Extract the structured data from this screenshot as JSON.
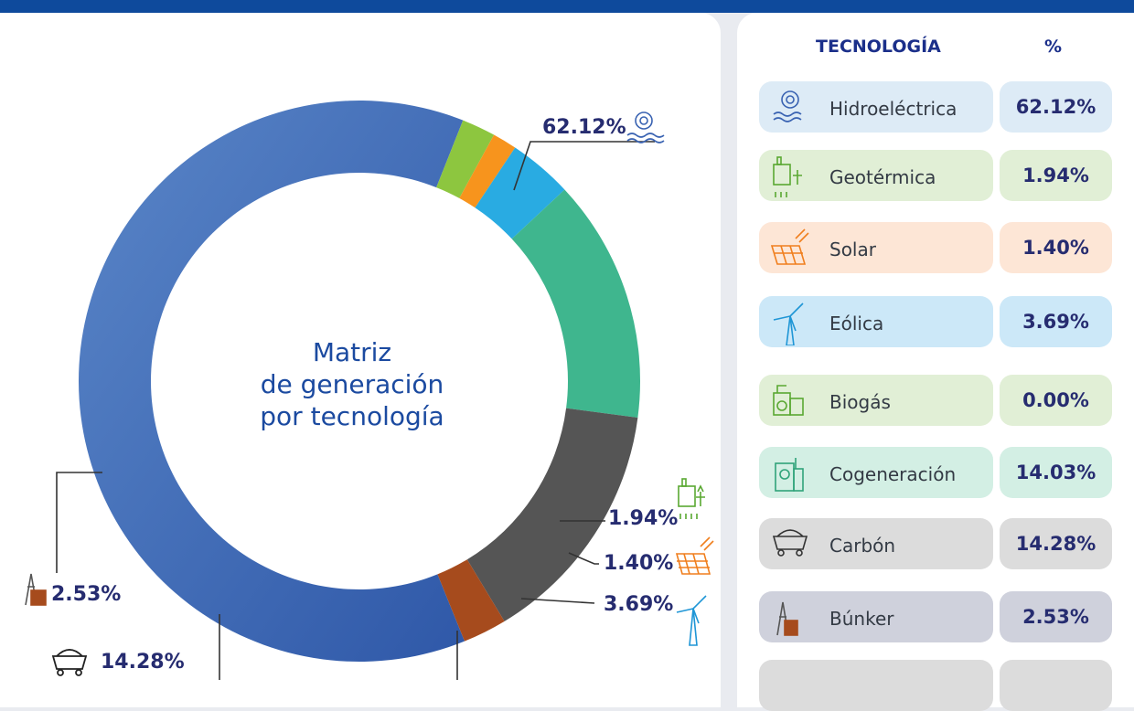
{
  "chart_data": {
    "type": "donut",
    "title": "Matriz de generación por tecnología",
    "title_lines": [
      "Matriz",
      "de generación",
      "por tecnología"
    ],
    "slices": [
      {
        "name": "Hidroeléctrica",
        "value": 62.12,
        "label": "62.12%",
        "color": "#3a63b2",
        "icon": "hydro-icon"
      },
      {
        "name": "Geotérmica",
        "value": 1.94,
        "label": "1.94%",
        "color": "#8dc63f",
        "icon": "geothermal-icon"
      },
      {
        "name": "Solar",
        "value": 1.4,
        "label": "1.40%",
        "color": "#f7941d",
        "icon": "solar-panel-icon"
      },
      {
        "name": "Eólica",
        "value": 3.69,
        "label": "3.69%",
        "color": "#29abe2",
        "icon": "wind-turbine-icon"
      },
      {
        "name": "Biogás",
        "value": 0.0,
        "label": "0.00%",
        "color": "#7ac143",
        "icon": "biogas-icon"
      },
      {
        "name": "Cogeneración",
        "value": 14.03,
        "label": "14.03%",
        "color": "#3fb68e",
        "icon": "cogeneration-icon"
      },
      {
        "name": "Carbón",
        "value": 14.28,
        "label": "14.28%",
        "color": "#555555",
        "icon": "coal-cart-icon"
      },
      {
        "name": "Búnker",
        "value": 2.53,
        "label": "2.53%",
        "color": "#a64b1d",
        "icon": "bunker-icon"
      }
    ]
  },
  "table": {
    "header_tech": "TECNOLOGÍA",
    "header_pct": "%",
    "rows": [
      {
        "label": "Hidroeléctrica",
        "pct": "62.12%",
        "bg": "#ddebf6",
        "icon_color": "#3a63b2"
      },
      {
        "label": "Geotérmica",
        "pct": "1.94%",
        "bg": "#e1efd6",
        "icon_color": "#5aa832"
      },
      {
        "label": "Solar",
        "pct": "1.40%",
        "bg": "#fde6d6",
        "icon_color": "#f07f1e"
      },
      {
        "label": "Eólica",
        "pct": "3.69%",
        "bg": "#cce8f8",
        "icon_color": "#1f96d6"
      },
      {
        "label": "Biogás",
        "pct": "0.00%",
        "bg": "#e1efd6",
        "icon_color": "#5aa832"
      },
      {
        "label": "Cogeneración",
        "pct": "14.03%",
        "bg": "#d3efe4",
        "icon_color": "#2fa37a"
      },
      {
        "label": "Carbón",
        "pct": "14.28%",
        "bg": "#dcdcdc",
        "icon_color": "#333333"
      },
      {
        "label": "Búnker",
        "pct": "2.53%",
        "bg": "#cfd1dc",
        "icon_color": "#555555"
      }
    ]
  }
}
